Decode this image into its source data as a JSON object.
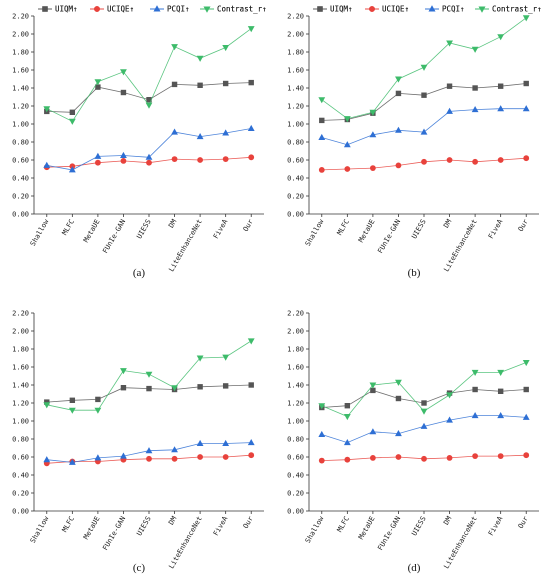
{
  "legend_entries": [
    {
      "label": "UIQM↑",
      "color": "#555555",
      "marker": "square"
    },
    {
      "label": "UCIQE↑",
      "color": "#e8423c",
      "marker": "circle"
    },
    {
      "label": "PCQI↑",
      "color": "#2e6fd4",
      "marker": "triangle-up"
    },
    {
      "label": "Contrast_r↑",
      "color": "#3dbb6a",
      "marker": "triangle-down"
    }
  ],
  "chart_data": [
    {
      "type": "line",
      "caption": "(a)",
      "categories": [
        "Shallow",
        "MLFC",
        "MetaUE",
        "FUnIe-GAN",
        "UIESS",
        "DM",
        "LiteEnhanceNet",
        "FiveA",
        "Our"
      ],
      "ylim": [
        0,
        2.2
      ],
      "yticks": [
        "0.00",
        "0.20",
        "0.40",
        "0.60",
        "0.80",
        "1.00",
        "1.20",
        "1.40",
        "1.60",
        "1.80",
        "2.00",
        "2.20"
      ],
      "legend_position": "top",
      "series": [
        {
          "name": "UIQM↑",
          "values": [
            1.14,
            1.13,
            1.41,
            1.35,
            1.27,
            1.44,
            1.43,
            1.45,
            1.46
          ]
        },
        {
          "name": "UCIQE↑",
          "values": [
            0.52,
            0.53,
            0.57,
            0.59,
            0.57,
            0.61,
            0.6,
            0.61,
            0.63
          ]
        },
        {
          "name": "PCQI↑",
          "values": [
            0.54,
            0.49,
            0.64,
            0.65,
            0.63,
            0.91,
            0.86,
            0.9,
            0.95
          ]
        },
        {
          "name": "Contrast_r↑",
          "values": [
            1.17,
            1.03,
            1.47,
            1.58,
            1.21,
            1.86,
            1.73,
            1.85,
            2.06
          ]
        }
      ]
    },
    {
      "type": "line",
      "caption": "(b)",
      "categories": [
        "Shallow",
        "MLFC",
        "MetaUE",
        "FUnIe-GAN",
        "UIESS",
        "DM",
        "LiteEnhanceNet",
        "FiveA",
        "Our"
      ],
      "ylim": [
        0,
        2.2
      ],
      "yticks": [
        "0.00",
        "0.20",
        "0.40",
        "0.60",
        "0.80",
        "1.00",
        "1.20",
        "1.40",
        "1.60",
        "1.80",
        "2.00",
        "2.20"
      ],
      "legend_position": "top",
      "series": [
        {
          "name": "UIQM↑",
          "values": [
            1.04,
            1.05,
            1.12,
            1.34,
            1.32,
            1.42,
            1.4,
            1.42,
            1.45
          ]
        },
        {
          "name": "UCIQE↑",
          "values": [
            0.49,
            0.5,
            0.51,
            0.54,
            0.58,
            0.6,
            0.58,
            0.6,
            0.62
          ]
        },
        {
          "name": "PCQI↑",
          "values": [
            0.85,
            0.77,
            0.88,
            0.93,
            0.91,
            1.14,
            1.16,
            1.17,
            1.17
          ]
        },
        {
          "name": "Contrast_r↑",
          "values": [
            1.27,
            1.06,
            1.13,
            1.5,
            1.63,
            1.9,
            1.83,
            1.97,
            2.18
          ]
        }
      ]
    },
    {
      "type": "line",
      "caption": "(c)",
      "categories": [
        "Shallow",
        "MLFC",
        "MetaUE",
        "FUnIe-GAN",
        "UIESS",
        "DM",
        "LiteEnhanceNet",
        "FiveA",
        "Our"
      ],
      "ylim": [
        0,
        2.2
      ],
      "yticks": [
        "0.00",
        "0.20",
        "0.40",
        "0.60",
        "0.80",
        "1.00",
        "1.20",
        "1.40",
        "1.60",
        "1.80",
        "2.00",
        "2.20"
      ],
      "legend_position": "top",
      "series": [
        {
          "name": "UIQM↑",
          "values": [
            1.21,
            1.23,
            1.24,
            1.37,
            1.36,
            1.35,
            1.38,
            1.39,
            1.4
          ]
        },
        {
          "name": "UCIQE↑",
          "values": [
            0.53,
            0.55,
            0.55,
            0.57,
            0.58,
            0.58,
            0.6,
            0.6,
            0.62
          ]
        },
        {
          "name": "PCQI↑",
          "values": [
            0.57,
            0.54,
            0.59,
            0.61,
            0.67,
            0.68,
            0.75,
            0.75,
            0.76
          ]
        },
        {
          "name": "Contrast_r↑",
          "values": [
            1.18,
            1.12,
            1.12,
            1.56,
            1.52,
            1.37,
            1.7,
            1.71,
            1.89
          ]
        }
      ]
    },
    {
      "type": "line",
      "caption": "(d)",
      "categories": [
        "Shallow",
        "MLFC",
        "MetaUE",
        "FUnIe-GAN",
        "UIESS",
        "DM",
        "LiteEnhanceNet",
        "FiveA",
        "Our"
      ],
      "ylim": [
        0,
        2.2
      ],
      "yticks": [
        "0.00",
        "0.20",
        "0.40",
        "0.60",
        "0.80",
        "1.00",
        "1.20",
        "1.40",
        "1.60",
        "1.80",
        "2.00",
        "2.20"
      ],
      "legend_position": "top",
      "series": [
        {
          "name": "UIQM↑",
          "values": [
            1.15,
            1.17,
            1.34,
            1.25,
            1.2,
            1.31,
            1.35,
            1.33,
            1.35
          ]
        },
        {
          "name": "UCIQE↑",
          "values": [
            0.56,
            0.57,
            0.59,
            0.6,
            0.58,
            0.59,
            0.61,
            0.61,
            0.62
          ]
        },
        {
          "name": "PCQI↑",
          "values": [
            0.85,
            0.76,
            0.88,
            0.86,
            0.94,
            1.01,
            1.06,
            1.06,
            1.04
          ]
        },
        {
          "name": "Contrast_r↑",
          "values": [
            1.17,
            1.05,
            1.4,
            1.43,
            1.11,
            1.29,
            1.54,
            1.54,
            1.65
          ]
        }
      ]
    }
  ]
}
